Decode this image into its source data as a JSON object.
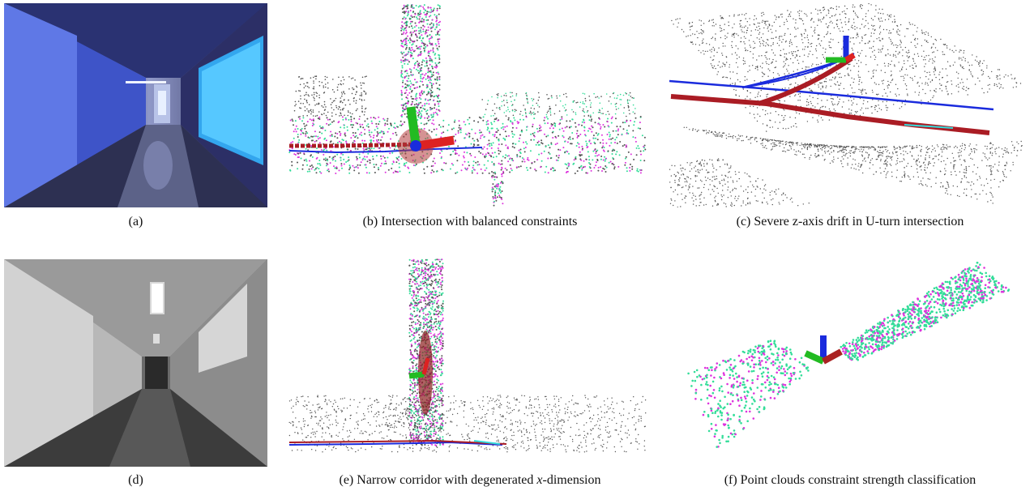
{
  "figure": {
    "panels": [
      {
        "id": "a",
        "caption": "(a)"
      },
      {
        "id": "b",
        "caption": "(b) Intersection with balanced constraints"
      },
      {
        "id": "c",
        "caption": "(c) Severe z-axis drift in U-turn intersection"
      },
      {
        "id": "d",
        "caption": "(d)"
      },
      {
        "id": "e",
        "caption_prefix": "(e) Narrow corridor with degenerated ",
        "caption_var": "x",
        "caption_suffix": "-dimension"
      },
      {
        "id": "f",
        "caption": "(f) Point clouds constraint strength classification"
      }
    ]
  },
  "colors": {
    "cloud_green": "#33dd99",
    "cloud_magenta": "#dd33dd",
    "cloud_gray": "#555555",
    "traj_blue": "#1a2bdd",
    "traj_red": "#aa1c24",
    "traj_cyan": "#33dddd",
    "axis_red": "#dd2222",
    "axis_green": "#22bb22",
    "axis_blue": "#1a2bdd"
  }
}
